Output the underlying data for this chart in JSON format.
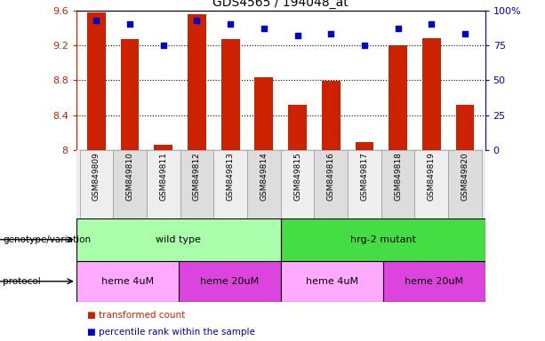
{
  "title": "GDS4565 / 194048_at",
  "samples": [
    "GSM849809",
    "GSM849810",
    "GSM849811",
    "GSM849812",
    "GSM849813",
    "GSM849814",
    "GSM849815",
    "GSM849816",
    "GSM849817",
    "GSM849818",
    "GSM849819",
    "GSM849820"
  ],
  "bar_values": [
    9.57,
    9.27,
    8.06,
    9.55,
    9.27,
    8.83,
    8.52,
    8.79,
    8.09,
    9.2,
    9.28,
    8.52
  ],
  "percentile_values": [
    93,
    90,
    75,
    93,
    90,
    87,
    82,
    83,
    75,
    87,
    90,
    83
  ],
  "bar_bottom": 8.0,
  "ylim_left": [
    8.0,
    9.6
  ],
  "ylim_right": [
    0,
    100
  ],
  "yticks_left": [
    8.0,
    8.4,
    8.8,
    9.2,
    9.6
  ],
  "ytick_labels_left": [
    "8",
    "8.4",
    "8.8",
    "9.2",
    "9.6"
  ],
  "yticks_right": [
    0,
    25,
    50,
    75,
    100
  ],
  "ytick_labels_right": [
    "0",
    "25",
    "50",
    "75",
    "100%"
  ],
  "bar_color": "#CC2200",
  "dot_color": "#0000CC",
  "bg_color": "#ffffff",
  "left_axis_color": "#CC2200",
  "right_axis_color": "#0000CC",
  "genotype_groups": [
    {
      "label": "wild type",
      "start": 0,
      "end": 6,
      "color": "#AAFFAA"
    },
    {
      "label": "hrg-2 mutant",
      "start": 6,
      "end": 12,
      "color": "#44DD44"
    }
  ],
  "protocol_groups": [
    {
      "label": "heme 4uM",
      "start": 0,
      "end": 3,
      "color": "#FFAAFF"
    },
    {
      "label": "heme 20uM",
      "start": 3,
      "end": 6,
      "color": "#DD44DD"
    },
    {
      "label": "heme 4uM",
      "start": 6,
      "end": 9,
      "color": "#FFAAFF"
    },
    {
      "label": "heme 20uM",
      "start": 9,
      "end": 12,
      "color": "#DD44DD"
    }
  ],
  "legend_items": [
    {
      "label": "transformed count",
      "color": "#CC2200"
    },
    {
      "label": "percentile rank within the sample",
      "color": "#0000CC"
    }
  ],
  "genotype_label": "genotype/variation",
  "protocol_label": "protocol",
  "bar_width": 0.55,
  "dot_size": 22
}
